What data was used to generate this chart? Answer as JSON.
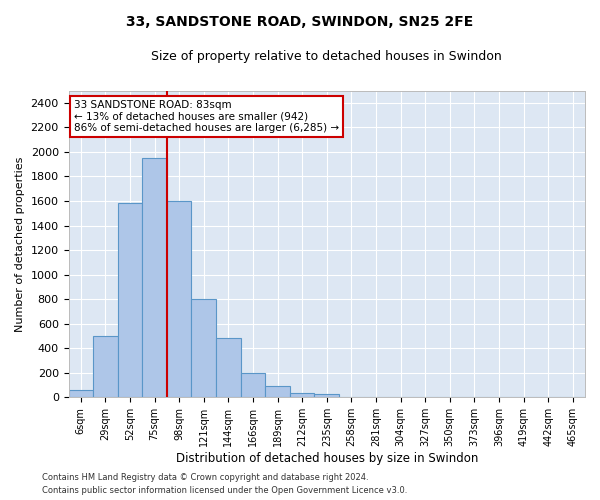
{
  "title_line1": "33, SANDSTONE ROAD, SWINDON, SN25 2FE",
  "title_line2": "Size of property relative to detached houses in Swindon",
  "xlabel": "Distribution of detached houses by size in Swindon",
  "ylabel": "Number of detached properties",
  "categories": [
    "6sqm",
    "29sqm",
    "52sqm",
    "75sqm",
    "98sqm",
    "121sqm",
    "144sqm",
    "166sqm",
    "189sqm",
    "212sqm",
    "235sqm",
    "258sqm",
    "281sqm",
    "304sqm",
    "327sqm",
    "350sqm",
    "373sqm",
    "396sqm",
    "419sqm",
    "442sqm",
    "465sqm"
  ],
  "values": [
    60,
    500,
    1580,
    1950,
    1600,
    800,
    480,
    200,
    90,
    35,
    28,
    0,
    0,
    0,
    0,
    0,
    0,
    0,
    0,
    0,
    0
  ],
  "bar_color": "#aec6e8",
  "bar_edge_color": "#5a96c8",
  "background_color": "#dde7f3",
  "annotation_text_line1": "33 SANDSTONE ROAD: 83sqm",
  "annotation_text_line2": "← 13% of detached houses are smaller (942)",
  "annotation_text_line3": "86% of semi-detached houses are larger (6,285) →",
  "annotation_box_color": "#ffffff",
  "annotation_box_edge": "#cc0000",
  "vline_color": "#cc0000",
  "ylim": [
    0,
    2500
  ],
  "yticks": [
    0,
    200,
    400,
    600,
    800,
    1000,
    1200,
    1400,
    1600,
    1800,
    2000,
    2200,
    2400
  ],
  "footer_line1": "Contains HM Land Registry data © Crown copyright and database right 2024.",
  "footer_line2": "Contains public sector information licensed under the Open Government Licence v3.0."
}
